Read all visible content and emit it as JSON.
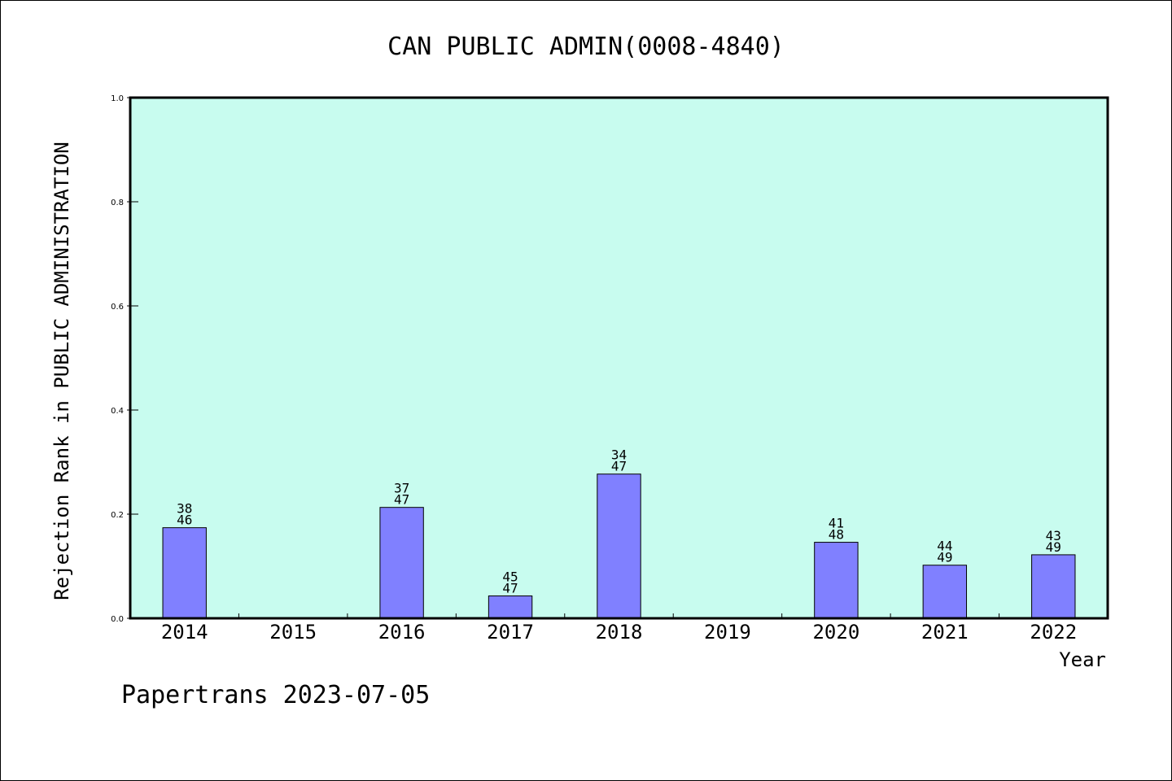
{
  "chart_data": {
    "type": "bar",
    "title": "CAN PUBLIC ADMIN(0008-4840)",
    "xlabel": "Year",
    "ylabel": "Rejection Rank in PUBLIC ADMINISTRATION",
    "ylim": [
      0,
      1
    ],
    "yticks": [
      "0.0",
      "0.2",
      "0.4",
      "0.6",
      "0.8",
      "1.0"
    ],
    "categories": [
      "2014",
      "2015",
      "2016",
      "2017",
      "2018",
      "2019",
      "2020",
      "2021",
      "2022"
    ],
    "values": [
      0.174,
      null,
      0.213,
      0.043,
      0.277,
      null,
      0.146,
      0.102,
      0.122
    ],
    "bar_labels": [
      [
        "38",
        "46"
      ],
      null,
      [
        "37",
        "47"
      ],
      [
        "45",
        "47"
      ],
      [
        "34",
        "47"
      ],
      null,
      [
        "41",
        "48"
      ],
      [
        "44",
        "49"
      ],
      [
        "43",
        "49"
      ]
    ],
    "grid": false,
    "legend": "none",
    "colors": {
      "plot_background": "#c8fcef",
      "bar_fill": "#8080ff",
      "bar_stroke": "#000000",
      "axis": "#000000"
    }
  },
  "footer": {
    "text": "Papertrans 2023-07-05"
  }
}
